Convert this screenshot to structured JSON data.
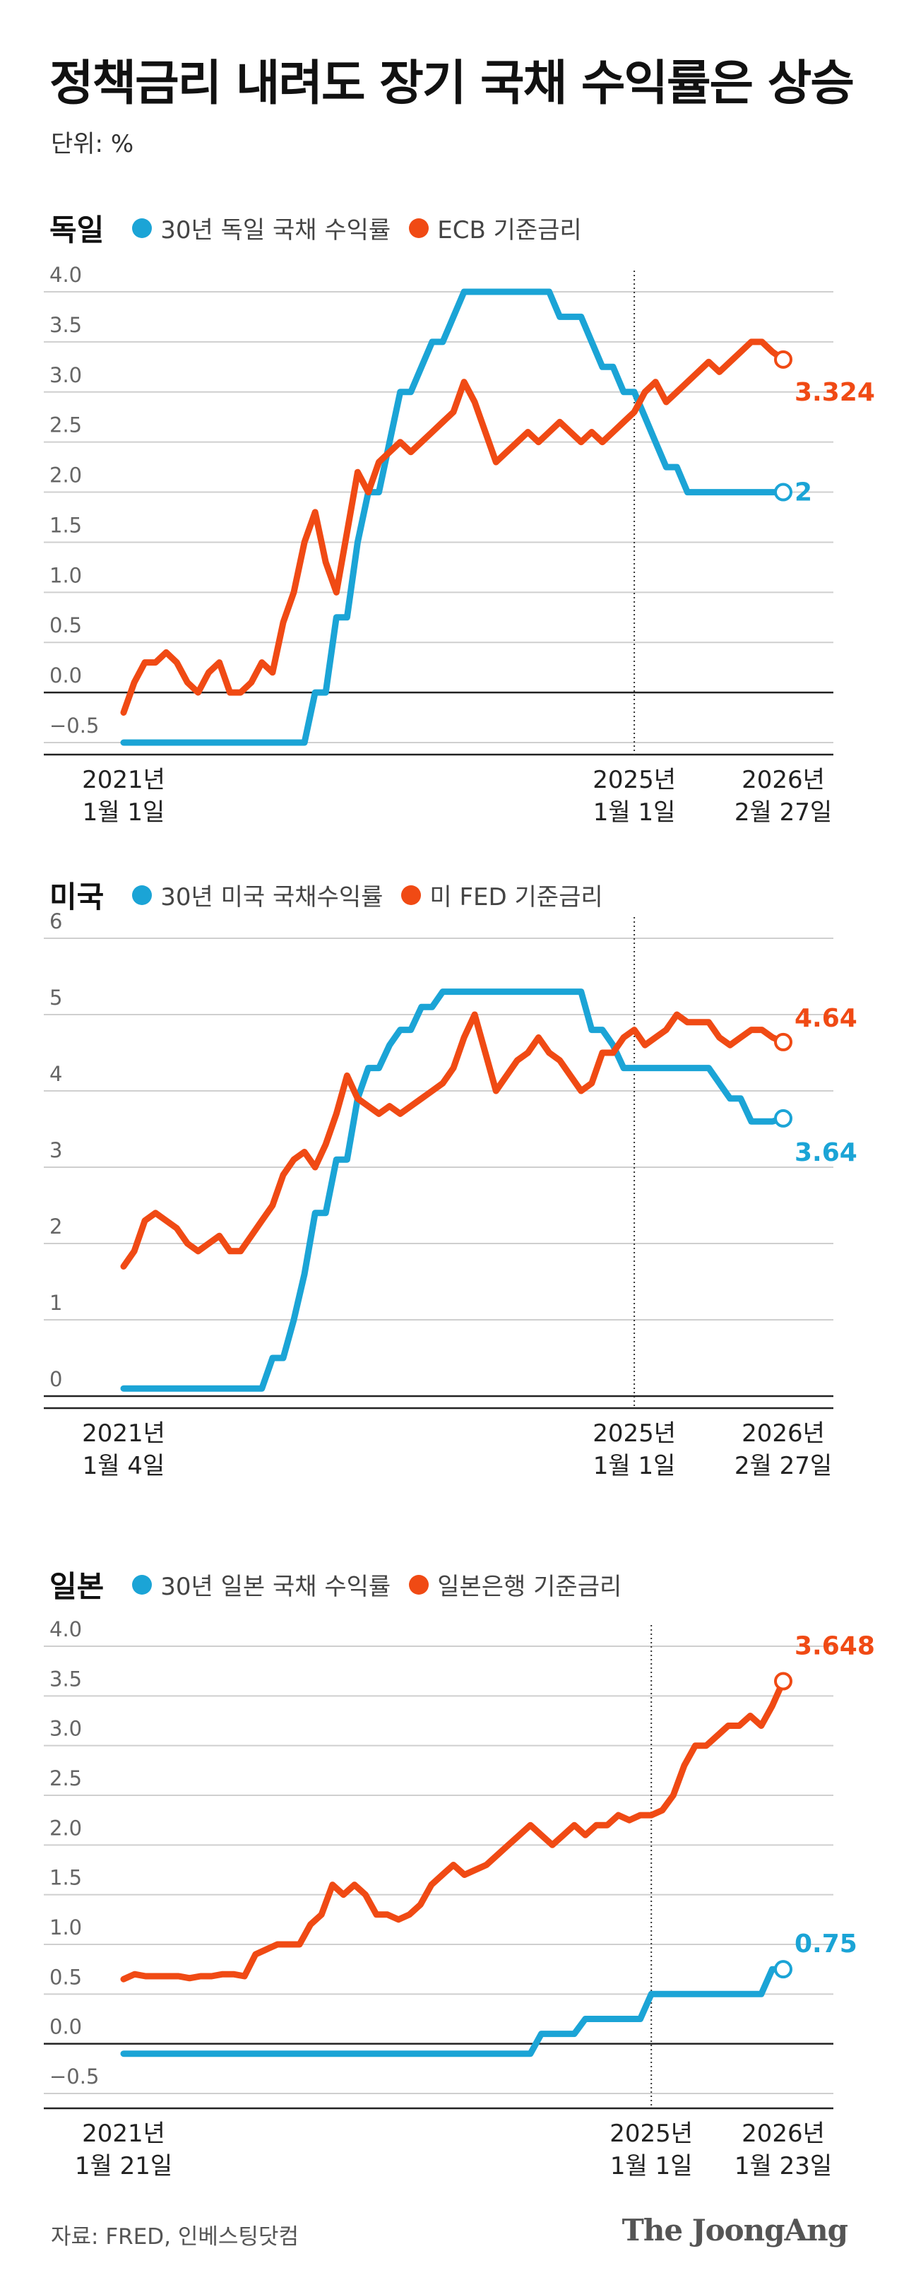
{
  "title": "정책금리 내려도 장기 국채 수익률은 상승",
  "unit": "단위: %",
  "source": "자료: FRED, 인베스팅닷컴",
  "logo": "The JoongAng",
  "chart_data": [
    {
      "type": "line",
      "title": "독일",
      "categories": [
        "2021년\n1월 1일",
        null,
        null,
        null,
        null,
        null,
        null,
        null,
        null,
        null,
        null,
        null,
        null,
        null,
        null,
        null,
        null,
        null,
        null,
        null,
        null,
        null,
        null,
        null,
        null,
        null,
        null,
        null,
        null,
        null,
        null,
        null,
        null,
        null,
        null,
        null,
        null,
        null,
        null,
        null,
        null,
        null,
        null,
        null,
        null,
        null,
        null,
        null,
        "2025년\n1월 1일",
        null,
        null,
        null,
        null,
        null,
        null,
        null,
        null,
        null,
        null,
        null,
        null,
        null,
        "2026년\n2월 27일"
      ],
      "series": [
        {
          "name": "30년 독일 국채 수익률",
          "color": "#1ba4d6",
          "values": [
            -0.5,
            -0.5,
            -0.5,
            -0.5,
            -0.5,
            -0.5,
            -0.5,
            -0.5,
            -0.5,
            -0.5,
            -0.5,
            -0.5,
            -0.5,
            -0.5,
            -0.5,
            -0.5,
            -0.5,
            -0.5,
            0,
            0,
            0.75,
            0.75,
            1.5,
            2.0,
            2.0,
            2.5,
            3.0,
            3.0,
            3.25,
            3.5,
            3.5,
            3.75,
            4.0,
            4.0,
            4.0,
            4.0,
            4.0,
            4.0,
            4.0,
            4.0,
            4.0,
            3.75,
            3.75,
            3.75,
            3.5,
            3.25,
            3.25,
            3.0,
            3.0,
            2.75,
            2.5,
            2.25,
            2.25,
            2.0,
            2.0,
            2.0,
            2.0,
            2.0,
            2.0,
            2.0,
            2.0,
            2.0,
            2
          ]
        },
        {
          "name": "ECB 기준금리",
          "color": "#f04a14",
          "values": [
            -0.2,
            0.1,
            0.3,
            0.3,
            0.4,
            0.3,
            0.1,
            0.0,
            0.2,
            0.3,
            0.0,
            0.0,
            0.1,
            0.3,
            0.2,
            0.7,
            1.0,
            1.5,
            1.8,
            1.3,
            1.0,
            1.6,
            2.2,
            2.0,
            2.3,
            2.4,
            2.5,
            2.4,
            2.5,
            2.6,
            2.7,
            2.8,
            3.1,
            2.9,
            2.6,
            2.3,
            2.4,
            2.5,
            2.6,
            2.5,
            2.6,
            2.7,
            2.6,
            2.5,
            2.6,
            2.5,
            2.6,
            2.7,
            2.8,
            3.0,
            3.1,
            2.9,
            3.0,
            3.1,
            3.2,
            3.3,
            3.2,
            3.3,
            3.4,
            3.5,
            3.5,
            3.4,
            3.324
          ]
        }
      ],
      "ylim": [
        -0.5,
        4.0
      ],
      "yticks": [
        {
          "value": -0.5,
          "label": "−0.5"
        },
        {
          "value": 0,
          "label": "0.0"
        },
        {
          "value": 0.5,
          "label": "0.5"
        },
        {
          "value": 1,
          "label": "1.0"
        },
        {
          "value": 1.5,
          "label": "1.5"
        },
        {
          "value": 2,
          "label": "2.0"
        },
        {
          "value": 2.5,
          "label": "2.5"
        },
        {
          "value": 3,
          "label": "3.0"
        },
        {
          "value": 3.5,
          "label": "3.5"
        },
        {
          "value": 4,
          "label": "4.0"
        }
      ],
      "grid": true
    },
    {
      "type": "line",
      "title": "미국",
      "categories": [
        "2021년\n1월 4일",
        null,
        null,
        null,
        null,
        null,
        null,
        null,
        null,
        null,
        null,
        null,
        null,
        null,
        null,
        null,
        null,
        null,
        null,
        null,
        null,
        null,
        null,
        null,
        null,
        null,
        null,
        null,
        null,
        null,
        null,
        null,
        null,
        null,
        null,
        null,
        null,
        null,
        null,
        null,
        null,
        null,
        null,
        null,
        null,
        null,
        null,
        null,
        "2025년\n1월 1일",
        null,
        null,
        null,
        null,
        null,
        null,
        null,
        null,
        null,
        null,
        null,
        null,
        null,
        "2026년\n2월 27일"
      ],
      "series": [
        {
          "name": "30년 미국 국채수익률",
          "color": "#1ba4d6",
          "values": [
            0.1,
            0.1,
            0.1,
            0.1,
            0.1,
            0.1,
            0.1,
            0.1,
            0.1,
            0.1,
            0.1,
            0.1,
            0.1,
            0.1,
            0.5,
            0.5,
            1.0,
            1.6,
            2.4,
            2.4,
            3.1,
            3.1,
            3.9,
            4.3,
            4.3,
            4.6,
            4.8,
            4.8,
            5.1,
            5.1,
            5.3,
            5.3,
            5.3,
            5.3,
            5.3,
            5.3,
            5.3,
            5.3,
            5.3,
            5.3,
            5.3,
            5.3,
            5.3,
            5.3,
            4.8,
            4.8,
            4.6,
            4.3,
            4.3,
            4.3,
            4.3,
            4.3,
            4.3,
            4.3,
            4.3,
            4.3,
            4.1,
            3.9,
            3.9,
            3.6,
            3.6,
            3.6,
            3.64
          ]
        },
        {
          "name": "미 FED 기준금리",
          "color": "#f04a14",
          "values": [
            1.7,
            1.9,
            2.3,
            2.4,
            2.3,
            2.2,
            2.0,
            1.9,
            2.0,
            2.1,
            1.9,
            1.9,
            2.1,
            2.3,
            2.5,
            2.9,
            3.1,
            3.2,
            3.0,
            3.3,
            3.7,
            4.2,
            3.9,
            3.8,
            3.7,
            3.8,
            3.7,
            3.8,
            3.9,
            4.0,
            4.1,
            4.3,
            4.7,
            5.0,
            4.5,
            4.0,
            4.2,
            4.4,
            4.5,
            4.7,
            4.5,
            4.4,
            4.2,
            4.0,
            4.1,
            4.5,
            4.5,
            4.7,
            4.8,
            4.6,
            4.7,
            4.8,
            5.0,
            4.9,
            4.9,
            4.9,
            4.7,
            4.6,
            4.7,
            4.8,
            4.8,
            4.7,
            4.64
          ]
        }
      ],
      "ylim": [
        0,
        6
      ],
      "yticks": [
        0,
        1,
        2,
        3,
        4,
        5,
        6
      ],
      "grid": true
    },
    {
      "type": "line",
      "title": "일본",
      "categories": [
        "2021년\n1월 21일",
        null,
        null,
        null,
        null,
        null,
        null,
        null,
        null,
        null,
        null,
        null,
        null,
        null,
        null,
        null,
        null,
        null,
        null,
        null,
        null,
        null,
        null,
        null,
        null,
        null,
        null,
        null,
        null,
        null,
        null,
        null,
        null,
        null,
        null,
        null,
        null,
        null,
        null,
        null,
        null,
        null,
        null,
        null,
        null,
        null,
        null,
        null,
        "2025년\n1월 1일",
        null,
        null,
        null,
        null,
        null,
        null,
        null,
        null,
        null,
        null,
        null,
        "2026년\n1월 23일"
      ],
      "series": [
        {
          "name": "30년 일본 국채 수익률",
          "color": "#1ba4d6",
          "values": [
            -0.1,
            -0.1,
            -0.1,
            -0.1,
            -0.1,
            -0.1,
            -0.1,
            -0.1,
            -0.1,
            -0.1,
            -0.1,
            -0.1,
            -0.1,
            -0.1,
            -0.1,
            -0.1,
            -0.1,
            -0.1,
            -0.1,
            -0.1,
            -0.1,
            -0.1,
            -0.1,
            -0.1,
            -0.1,
            -0.1,
            -0.1,
            -0.1,
            -0.1,
            -0.1,
            -0.1,
            -0.1,
            -0.1,
            -0.1,
            -0.1,
            -0.1,
            -0.1,
            -0.1,
            0.1,
            0.1,
            0.1,
            0.1,
            0.25,
            0.25,
            0.25,
            0.25,
            0.25,
            0.25,
            0.5,
            0.5,
            0.5,
            0.5,
            0.5,
            0.5,
            0.5,
            0.5,
            0.5,
            0.5,
            0.5,
            0.75,
            0.75
          ]
        },
        {
          "name": "일본은행 기준금리",
          "color": "#f04a14",
          "values": [
            0.65,
            0.7,
            0.68,
            0.68,
            0.68,
            0.68,
            0.66,
            0.68,
            0.68,
            0.7,
            0.7,
            0.68,
            0.9,
            0.95,
            1.0,
            1.0,
            1.0,
            1.2,
            1.3,
            1.6,
            1.5,
            1.6,
            1.5,
            1.3,
            1.3,
            1.25,
            1.3,
            1.4,
            1.6,
            1.7,
            1.8,
            1.7,
            1.75,
            1.8,
            1.9,
            2.0,
            2.1,
            2.2,
            2.1,
            2.0,
            2.1,
            2.2,
            2.1,
            2.2,
            2.2,
            2.3,
            2.25,
            2.3,
            2.3,
            2.35,
            2.5,
            2.8,
            3.0,
            3.0,
            3.1,
            3.2,
            3.2,
            3.3,
            3.2,
            3.4,
            3.648
          ]
        }
      ],
      "ylim": [
        -0.5,
        4.0
      ],
      "yticks": [
        {
          "value": -0.5,
          "label": "−0.5"
        },
        {
          "value": 0,
          "label": "0.0"
        },
        {
          "value": 0.5,
          "label": "0.5"
        },
        {
          "value": 1,
          "label": "1.0"
        },
        {
          "value": 1.5,
          "label": "1.5"
        },
        {
          "value": 2,
          "label": "2.0"
        },
        {
          "value": 2.5,
          "label": "2.5"
        },
        {
          "value": 3,
          "label": "3.0"
        },
        {
          "value": 3.5,
          "label": "3.5"
        },
        {
          "value": 4,
          "label": "4.0"
        }
      ],
      "grid": true
    }
  ]
}
